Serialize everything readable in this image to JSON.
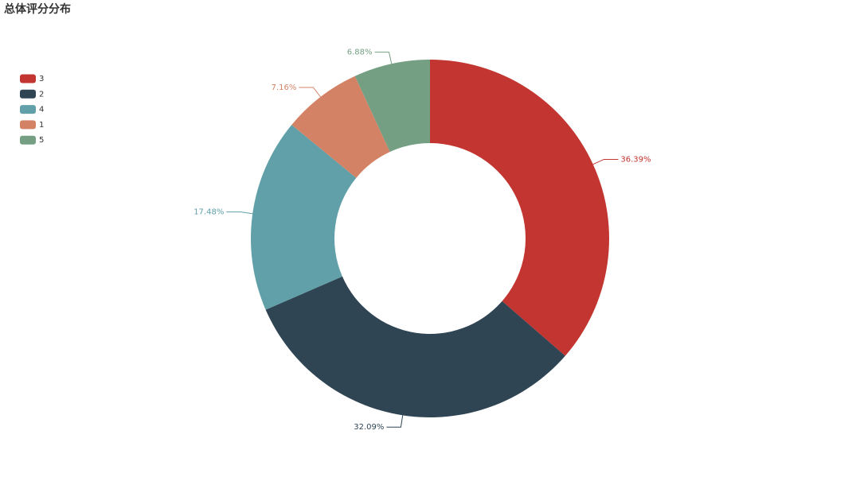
{
  "chart_data": {
    "type": "pie",
    "title": "总体评分分布",
    "categories": [
      "3",
      "2",
      "4",
      "1",
      "5"
    ],
    "values": [
      36.39,
      32.09,
      17.48,
      7.16,
      6.88
    ],
    "value_labels": [
      "36.39%",
      "32.09%",
      "17.48%",
      "7.16%",
      "6.88%"
    ],
    "colors": [
      "#c23531",
      "#2f4554",
      "#61a0a8",
      "#d48265",
      "#749f83"
    ],
    "legend": "top-left"
  }
}
